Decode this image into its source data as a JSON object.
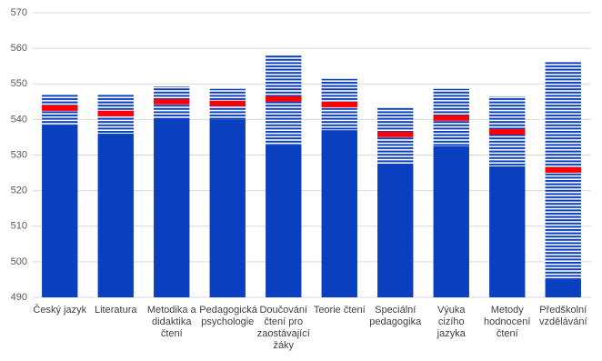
{
  "chart_data": {
    "type": "bar",
    "categories": [
      "Český jazyk",
      "Literatura",
      "Metodika a didaktika čtení",
      "Pedagogická psychologie",
      "Doučování čtení pro zaostávající žáky",
      "Teorie čtení",
      "Speciální pedagogika",
      "Výuka cizího jazyka",
      "Metody hodnocení čtení",
      "Předškolní vzdělávání"
    ],
    "series": [
      {
        "color": "#0a3fbf",
        "pattern": "solid",
        "values": [
          538.3,
          536,
          540.4,
          540,
          532.7,
          537,
          527.6,
          532.5,
          526.8,
          495.1
        ]
      },
      {
        "color": "#0a3fbf",
        "pattern": "stripes",
        "values": [
          8.7,
          11,
          8.9,
          8.6,
          25.3,
          14.4,
          15.9,
          16.1,
          19.7,
          61.1
        ]
      }
    ],
    "markers": {
      "color": "#ff0000",
      "values": [
        543.2,
        541.7,
        545,
        544.5,
        545.8,
        544.2,
        535.8,
        540.4,
        536.5,
        525.8
      ]
    },
    "ylim": [
      490,
      570
    ],
    "yticks": [
      490,
      500,
      510,
      520,
      530,
      540,
      550,
      560,
      570
    ],
    "grid": true
  }
}
